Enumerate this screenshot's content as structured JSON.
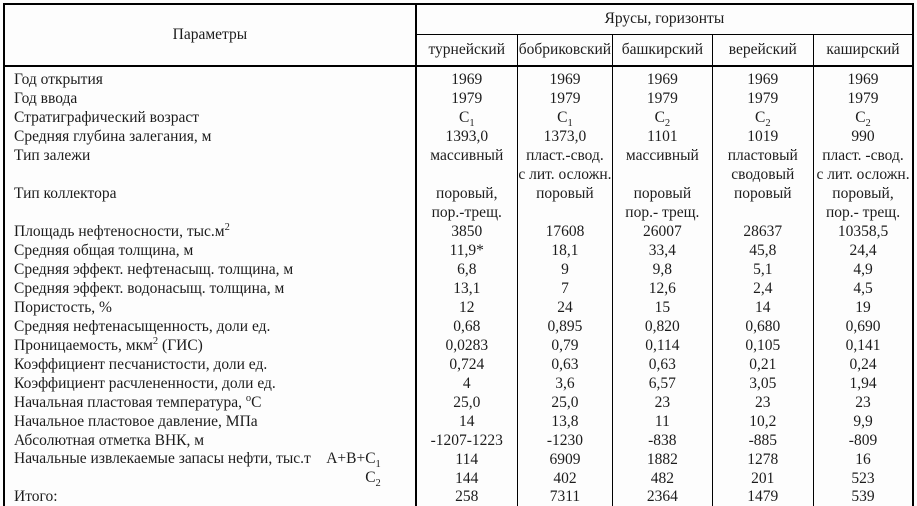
{
  "table": {
    "params_header": "Параметры",
    "group_header": "Ярусы, горизонты",
    "columns": [
      "турнейский",
      "бобриковский",
      "башкирский",
      "верейский",
      "каширский"
    ],
    "rows": [
      {
        "label": "Год открытия",
        "values": [
          "1969",
          "1969",
          "1969",
          "1969",
          "1969"
        ]
      },
      {
        "label": "Год ввода",
        "values": [
          "1979",
          "1979",
          "1979",
          "1979",
          "1979"
        ]
      },
      {
        "label": "Стратиграфический возраст",
        "values": [
          "С_{1}",
          "С_{1}",
          "С_{2}",
          "С_{2}",
          "С_{2}"
        ]
      },
      {
        "label": "Средняя глубина залегания, м",
        "values": [
          "1393,0",
          "1373,0",
          "1101",
          "1019",
          "990"
        ]
      },
      {
        "label": "Тип залежи",
        "values": [
          "массивный",
          "пласт.-свод.",
          "массивный",
          "пластовый",
          "пласт. -свод."
        ]
      },
      {
        "label": "",
        "values": [
          "",
          "с лит. осложн.",
          "",
          "сводовый",
          "с лит. осложн."
        ]
      },
      {
        "label": "Тип коллектора",
        "values": [
          "поровый,",
          "поровый",
          "поровый",
          "поровый",
          "поровый,"
        ]
      },
      {
        "label": "",
        "values": [
          "пор.-трещ.",
          "",
          "пор.- трещ.",
          "",
          "пор.- трещ."
        ]
      },
      {
        "label": "Площадь нефтеносности, тыс.м^{2}",
        "values": [
          "3850",
          "17608",
          "26007",
          "28637",
          "10358,5"
        ]
      },
      {
        "label": "Средняя общая толщина, м",
        "values": [
          "11,9*",
          "18,1",
          "33,4",
          "45,8",
          "24,4"
        ]
      },
      {
        "label": "Средняя эффект. нефтенасыщ. толщина, м",
        "values": [
          "6,8",
          "9",
          "9,8",
          "5,1",
          "4,9"
        ]
      },
      {
        "label": "Средняя эффект. водонасыщ. толщина, м",
        "values": [
          "13,1",
          "7",
          "12,6",
          "2,4",
          "4,5"
        ]
      },
      {
        "label": "Пористость, %",
        "values": [
          "12",
          "24",
          "15",
          "14",
          "19"
        ]
      },
      {
        "label": "Средняя нефтенасыщенность, доли ед.",
        "values": [
          "0,68",
          "0,895",
          "0,820",
          "0,680",
          "0,690"
        ]
      },
      {
        "label": "Проницаемость, мкм^{2} (ГИС)",
        "values": [
          "0,0283",
          "0,79",
          "0,114",
          "0,105",
          "0,141"
        ]
      },
      {
        "label": "Коэффициент песчанистости, доли ед.",
        "values": [
          "0,724",
          "0,63",
          "0,63",
          "0,21",
          "0,24"
        ]
      },
      {
        "label": "Коэффициент расчлененности, доли ед.",
        "values": [
          "4",
          "3,6",
          "6,57",
          "3,05",
          "1,94"
        ]
      },
      {
        "label": "Начальная пластовая температура, ^{о}С",
        "values": [
          "25,0",
          "25,0",
          "23",
          "23",
          "23"
        ]
      },
      {
        "label": "Начальное пластовое давление, МПа",
        "values": [
          "14",
          "13,8",
          "11",
          "10,2",
          "9,9"
        ]
      },
      {
        "label": "Абсолютная отметка ВНК, м",
        "values": [
          "-1207-1223",
          "-1230",
          "-838",
          "-885",
          "-809"
        ]
      },
      {
        "label": "Начальные извлекаемые запасы нефти, тыс.т",
        "label_right": "А+В+С_{1}",
        "values": [
          "114",
          "6909",
          "1882",
          "1278",
          "16"
        ]
      },
      {
        "label": "",
        "label_right": "С_{2}",
        "values": [
          "144",
          "402",
          "482",
          "201",
          "523"
        ]
      },
      {
        "label": "Итого:",
        "values": [
          "258",
          "7311",
          "2364",
          "1479",
          "539"
        ]
      }
    ]
  }
}
